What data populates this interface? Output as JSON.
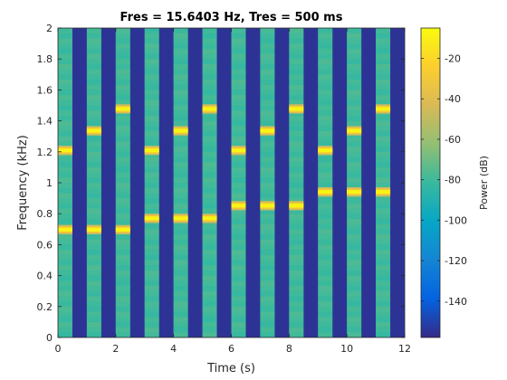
{
  "chart_data": {
    "type": "heatmap",
    "title": "Fres = 15.6403 Hz, Tres = 500 ms",
    "xlabel": "Time (s)",
    "ylabel": "Frequency (kHz)",
    "xlim": [
      0,
      12
    ],
    "ylim": [
      0,
      2
    ],
    "xticks": [
      "0",
      "2",
      "4",
      "6",
      "8",
      "10",
      "12"
    ],
    "xtick_values": [
      0,
      2,
      4,
      6,
      8,
      10,
      12
    ],
    "yticks": [
      "0",
      "0.2",
      "0.4",
      "0.6",
      "0.8",
      "1",
      "1.2",
      "1.4",
      "1.6",
      "1.8",
      "2"
    ],
    "ytick_values": [
      0,
      0.2,
      0.4,
      0.6,
      0.8,
      1.0,
      1.2,
      1.4,
      1.6,
      1.8,
      2.0
    ],
    "grid": false,
    "colormap": "parula",
    "colorbar": {
      "label": "Power (dB)",
      "range": [
        -158,
        -5
      ],
      "ticks": [
        "-20",
        "-40",
        "-60",
        "-80",
        "-100",
        "-120",
        "-140"
      ],
      "tick_values": [
        -20,
        -40,
        -60,
        -80,
        -100,
        -120,
        -140
      ]
    },
    "background_power_db": -155,
    "active_segments": [
      {
        "t_start": 0.0,
        "t_end": 0.5,
        "base_db": -80,
        "tones_khz": [
          0.697,
          1.209
        ]
      },
      {
        "t_start": 1.0,
        "t_end": 1.5,
        "base_db": -80,
        "tones_khz": [
          0.697,
          1.336
        ]
      },
      {
        "t_start": 2.0,
        "t_end": 2.5,
        "base_db": -80,
        "tones_khz": [
          0.697,
          1.477
        ]
      },
      {
        "t_start": 3.0,
        "t_end": 3.5,
        "base_db": -80,
        "tones_khz": [
          0.77,
          1.209
        ]
      },
      {
        "t_start": 4.0,
        "t_end": 4.5,
        "base_db": -80,
        "tones_khz": [
          0.77,
          1.336
        ]
      },
      {
        "t_start": 5.0,
        "t_end": 5.5,
        "base_db": -80,
        "tones_khz": [
          0.77,
          1.477
        ]
      },
      {
        "t_start": 6.0,
        "t_end": 6.5,
        "base_db": -80,
        "tones_khz": [
          0.852,
          1.209
        ]
      },
      {
        "t_start": 7.0,
        "t_end": 7.5,
        "base_db": -80,
        "tones_khz": [
          0.852,
          1.336
        ]
      },
      {
        "t_start": 8.0,
        "t_end": 8.5,
        "base_db": -80,
        "tones_khz": [
          0.852,
          1.477
        ]
      },
      {
        "t_start": 9.0,
        "t_end": 9.5,
        "base_db": -80,
        "tones_khz": [
          0.941,
          1.209
        ]
      },
      {
        "t_start": 10.0,
        "t_end": 10.5,
        "base_db": -80,
        "tones_khz": [
          0.941,
          1.336
        ]
      },
      {
        "t_start": 11.0,
        "t_end": 11.5,
        "base_db": -80,
        "tones_khz": [
          0.941,
          1.477
        ]
      }
    ],
    "tone_peak_db": -8
  }
}
